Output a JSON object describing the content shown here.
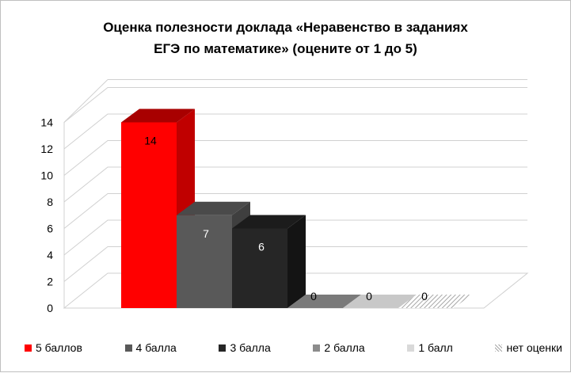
{
  "chart_data": {
    "type": "bar",
    "title_lines": [
      "Оценка полезности доклада «Неравенство в заданиях",
      "ЕГЭ по математике» (оцените от 1 до 5)"
    ],
    "categories": [
      "5 баллов",
      "4 балла",
      "3 балла",
      "2 балла",
      "1 балл",
      "нет оценки"
    ],
    "values": [
      14,
      7,
      6,
      0,
      0,
      0
    ],
    "data_labels": [
      "14",
      "7",
      "6",
      "0",
      "0",
      "0"
    ],
    "yticks": [
      "0",
      "2",
      "4",
      "6",
      "8",
      "10",
      "12",
      "14"
    ],
    "ylim": [
      0,
      14
    ],
    "grid": true,
    "legend_position": "bottom",
    "projection": "3d",
    "colors": [
      "#ff0000",
      "#595959",
      "#262626",
      "#8c8c8c",
      "#d9d9d9",
      "#bfbfbf"
    ],
    "side_colors": [
      "#c00000",
      "#3f3f3f",
      "#141414",
      "#6f6f6f",
      "#bfbfbf",
      "#a6a6a6"
    ],
    "top_colors": [
      "#a80000",
      "#4a4a4a",
      "#1c1c1c",
      "#7a7a7a",
      "#c8c8c8",
      "#b0b0b0"
    ],
    "patterns": [
      "solid",
      "solid",
      "solid",
      "solid",
      "solid",
      "hatch"
    ],
    "label_colors": [
      "#000000",
      "#ffffff",
      "#ffffff",
      "#000000",
      "#000000",
      "#000000"
    ]
  }
}
